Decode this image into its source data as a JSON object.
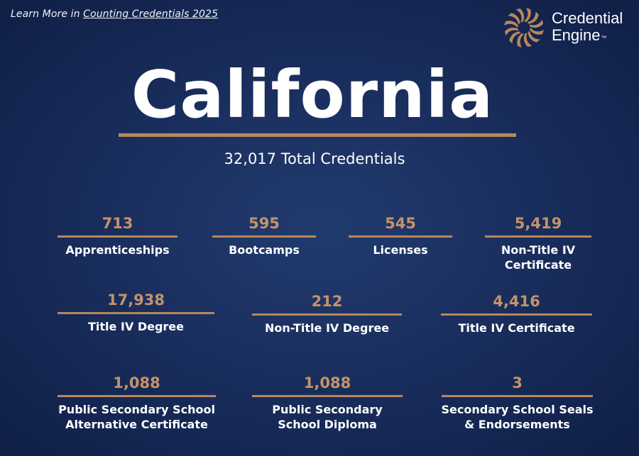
{
  "header": {
    "learn_more_prefix": "Learn More in ",
    "learn_more_link": "Counting Credentials 2025"
  },
  "brand": {
    "line1": "Credential",
    "line2": "Engine",
    "tm": "™",
    "logo_icon": "credential-engine-logo-icon",
    "accent_color": "#b9875a"
  },
  "state": {
    "name": "California",
    "total": "32,017 Total Credentials"
  },
  "colors": {
    "background": "#1b3060",
    "value_text": "#c4936a",
    "rule": "#b9875a"
  },
  "stats": [
    {
      "value": "713",
      "label": "Apprenticeships"
    },
    {
      "value": "595",
      "label": "Bootcamps"
    },
    {
      "value": "545",
      "label": "Licenses"
    },
    {
      "value": "5,419",
      "label": "Non-Title IV Certificate"
    },
    {
      "value": "17,938",
      "label": "Title IV Degree"
    },
    {
      "value": "212",
      "label": "Non-Title IV Degree"
    },
    {
      "value": "4,416",
      "label": "Title IV Certificate"
    },
    {
      "value": "1,088",
      "label": "Public Secondary School Alternative Certificate"
    },
    {
      "value": "1,088",
      "label": "Public Secondary School Diploma"
    },
    {
      "value": "3",
      "label": "Secondary School Seals & Endorsements"
    }
  ]
}
